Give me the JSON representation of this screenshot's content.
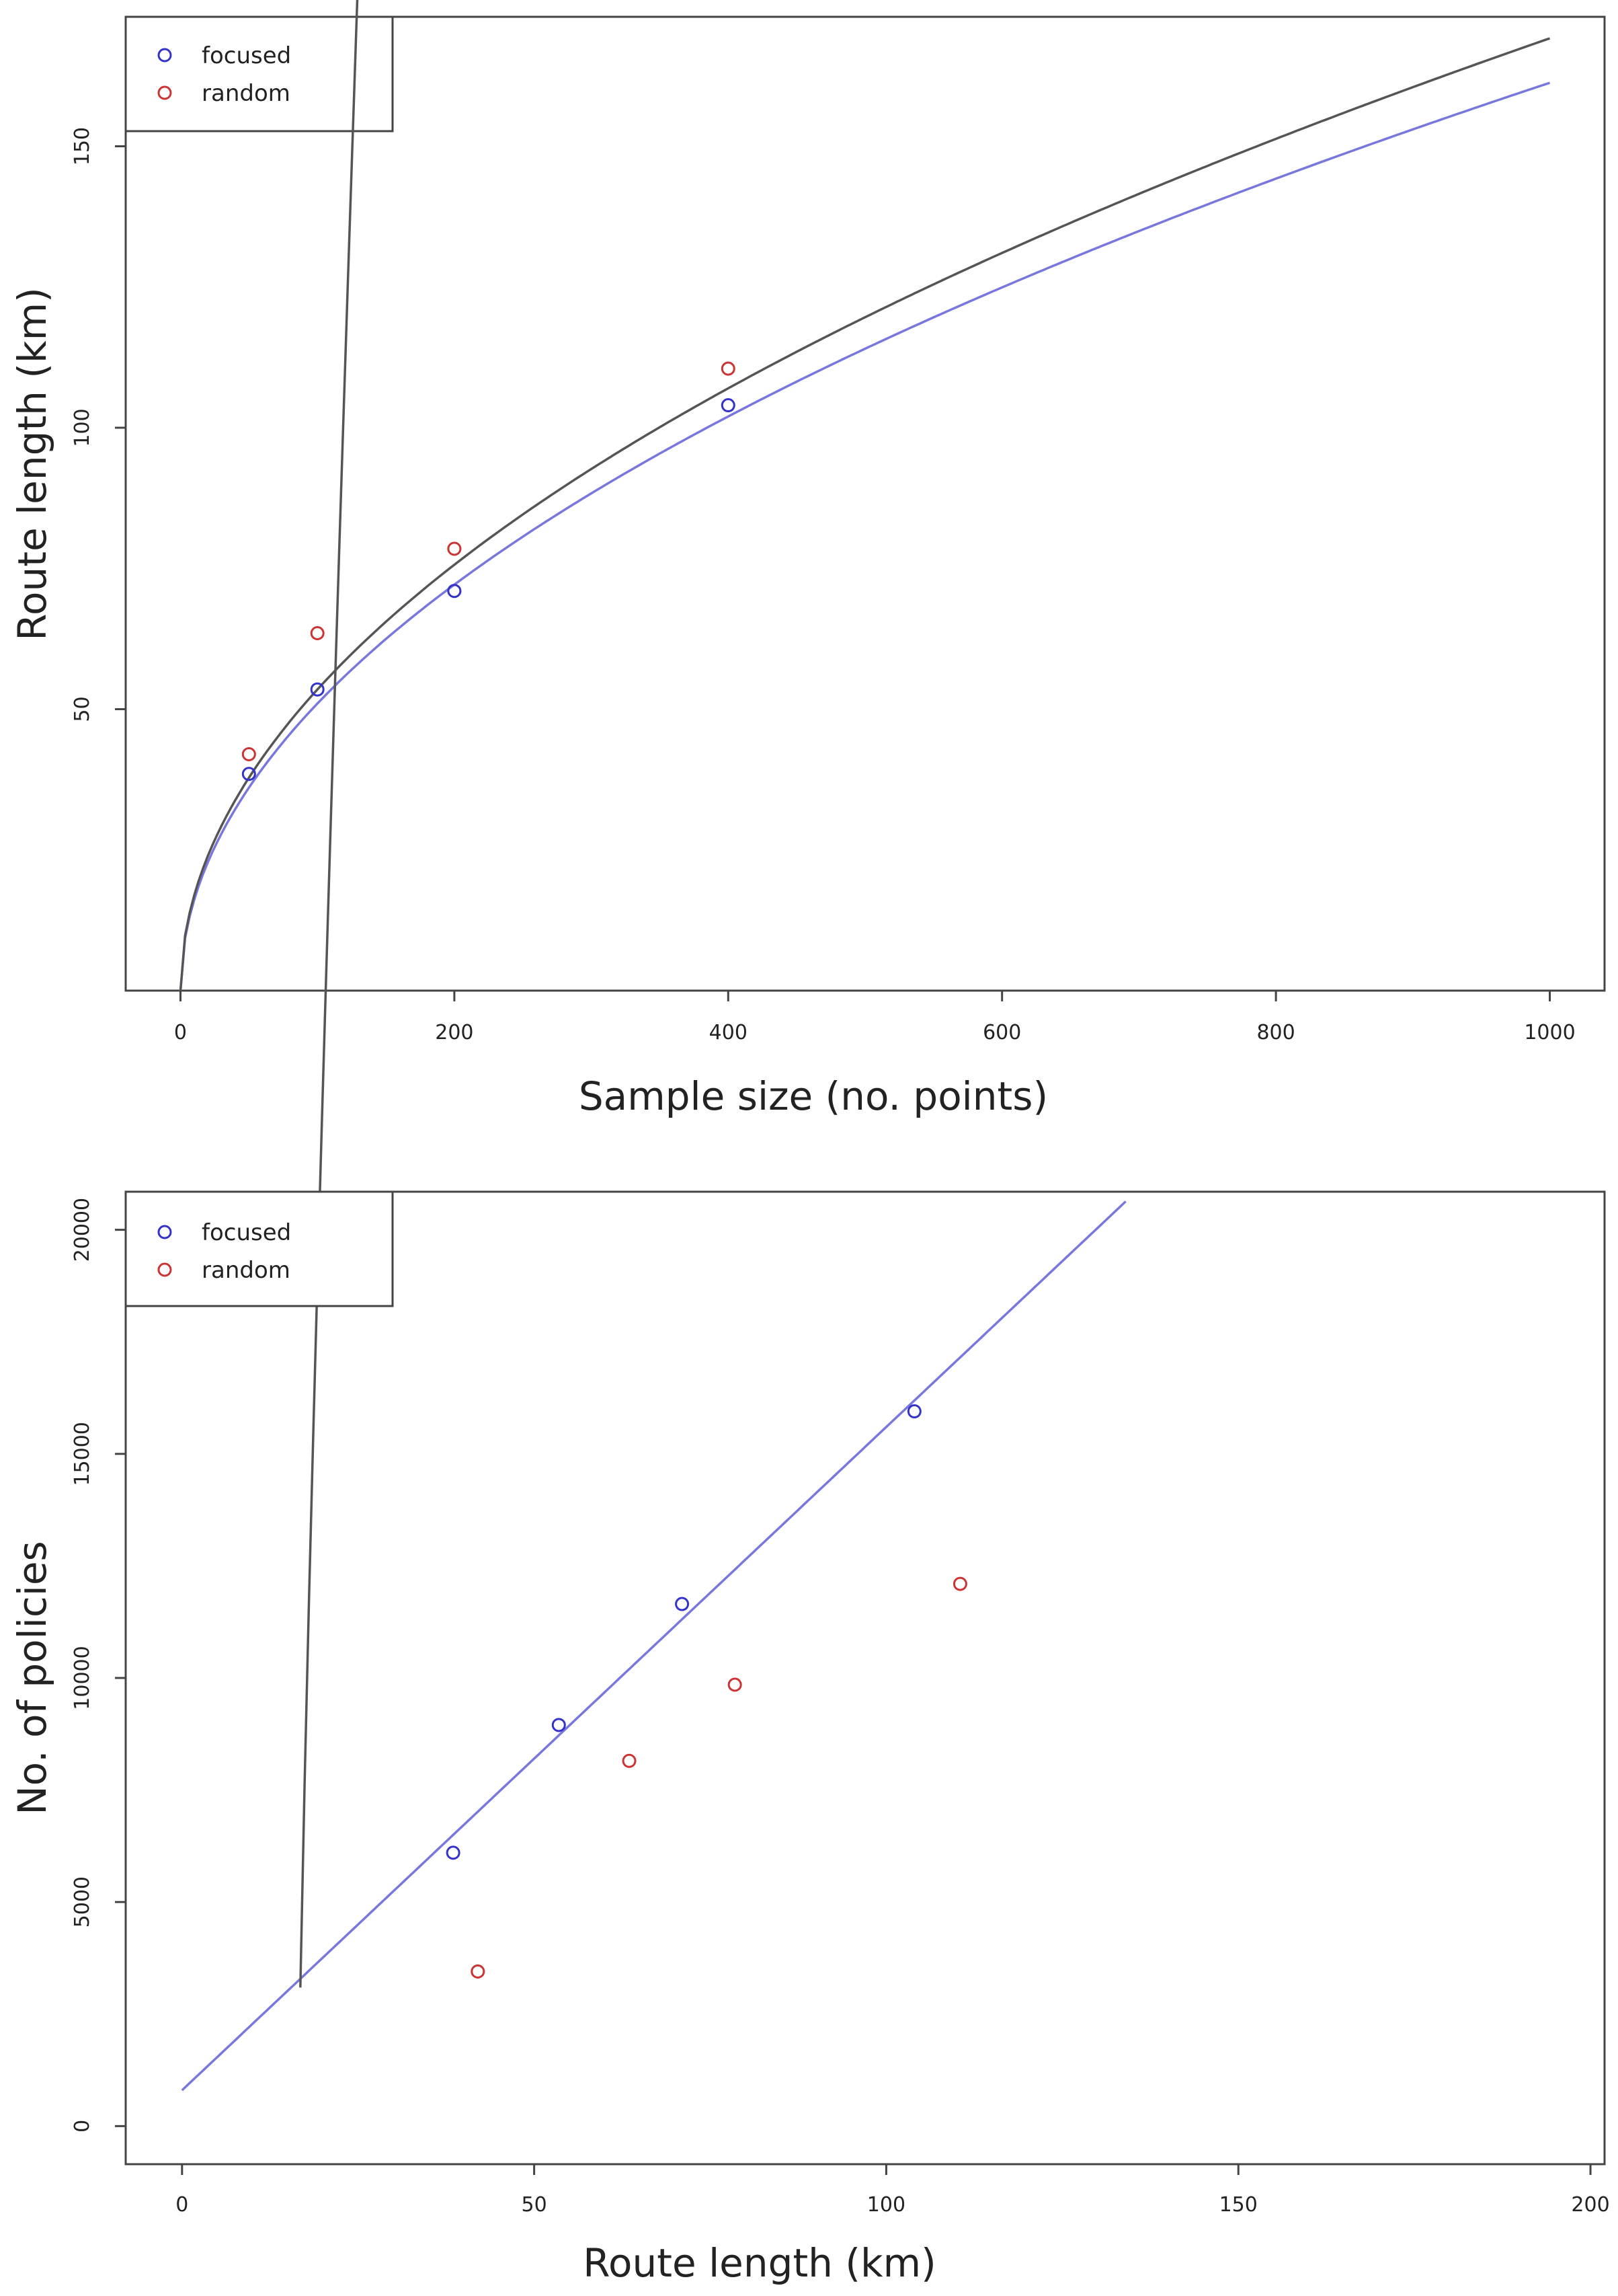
{
  "chart_data": [
    {
      "type": "scatter",
      "xlabel": "Sample size (no. points)",
      "ylabel": "Route length (km)",
      "xlim": [
        -40,
        1040
      ],
      "ylim": [
        0,
        173
      ],
      "xticks": [
        0,
        200,
        400,
        600,
        800,
        1000
      ],
      "yticks": [
        50,
        100,
        150
      ],
      "grid": false,
      "legend_position": "top-left",
      "series": [
        {
          "name": "focused",
          "color": "#3333cc",
          "points": [
            [
              50,
              38.5
            ],
            [
              100,
              53.5
            ],
            [
              200,
              71
            ],
            [
              400,
              104
            ]
          ]
        },
        {
          "name": "random",
          "color": "#cc3333",
          "points": [
            [
              50,
              42
            ],
            [
              100,
              63.5
            ],
            [
              200,
              78.5
            ],
            [
              400,
              110.5
            ]
          ]
        }
      ],
      "fits": [
        {
          "color": "#7777dd",
          "model": "power",
          "a": 5.1,
          "b": 0.5,
          "xrange": [
            0,
            1000
          ]
        },
        {
          "color": "#555555",
          "model": "power",
          "a": 5.35,
          "b": 0.5,
          "xrange": [
            0,
            1000
          ]
        }
      ]
    },
    {
      "type": "scatter",
      "xlabel": "Route length (km)",
      "ylabel": "No. of policies",
      "xlim": [
        -8,
        202
      ],
      "ylim": [
        -850,
        20850
      ],
      "xticks": [
        0,
        50,
        100,
        150,
        200
      ],
      "yticks": [
        0,
        5000,
        10000,
        15000,
        20000
      ],
      "grid": false,
      "legend_position": "top-left",
      "series": [
        {
          "name": "focused",
          "color": "#3333cc",
          "points": [
            [
              38.5,
              6100
            ],
            [
              53.5,
              8950
            ],
            [
              71,
              11650
            ],
            [
              104,
              15950
            ]
          ]
        },
        {
          "name": "random",
          "color": "#cc3333",
          "points": [
            [
              42,
              3450
            ],
            [
              63.5,
              8150
            ],
            [
              78.5,
              9850
            ],
            [
              110.5,
              12100
            ]
          ]
        }
      ],
      "fits": [
        {
          "color": "#7777dd",
          "model": "linear",
          "intercept": 800,
          "slope": 148,
          "xrange": [
            0,
            134
          ]
        },
        {
          "color": "#555555",
          "model": "power",
          "a": 8300,
          "b": 0.82,
          "offset": 16.5,
          "xrange": [
            16.8,
            200
          ]
        }
      ]
    }
  ]
}
